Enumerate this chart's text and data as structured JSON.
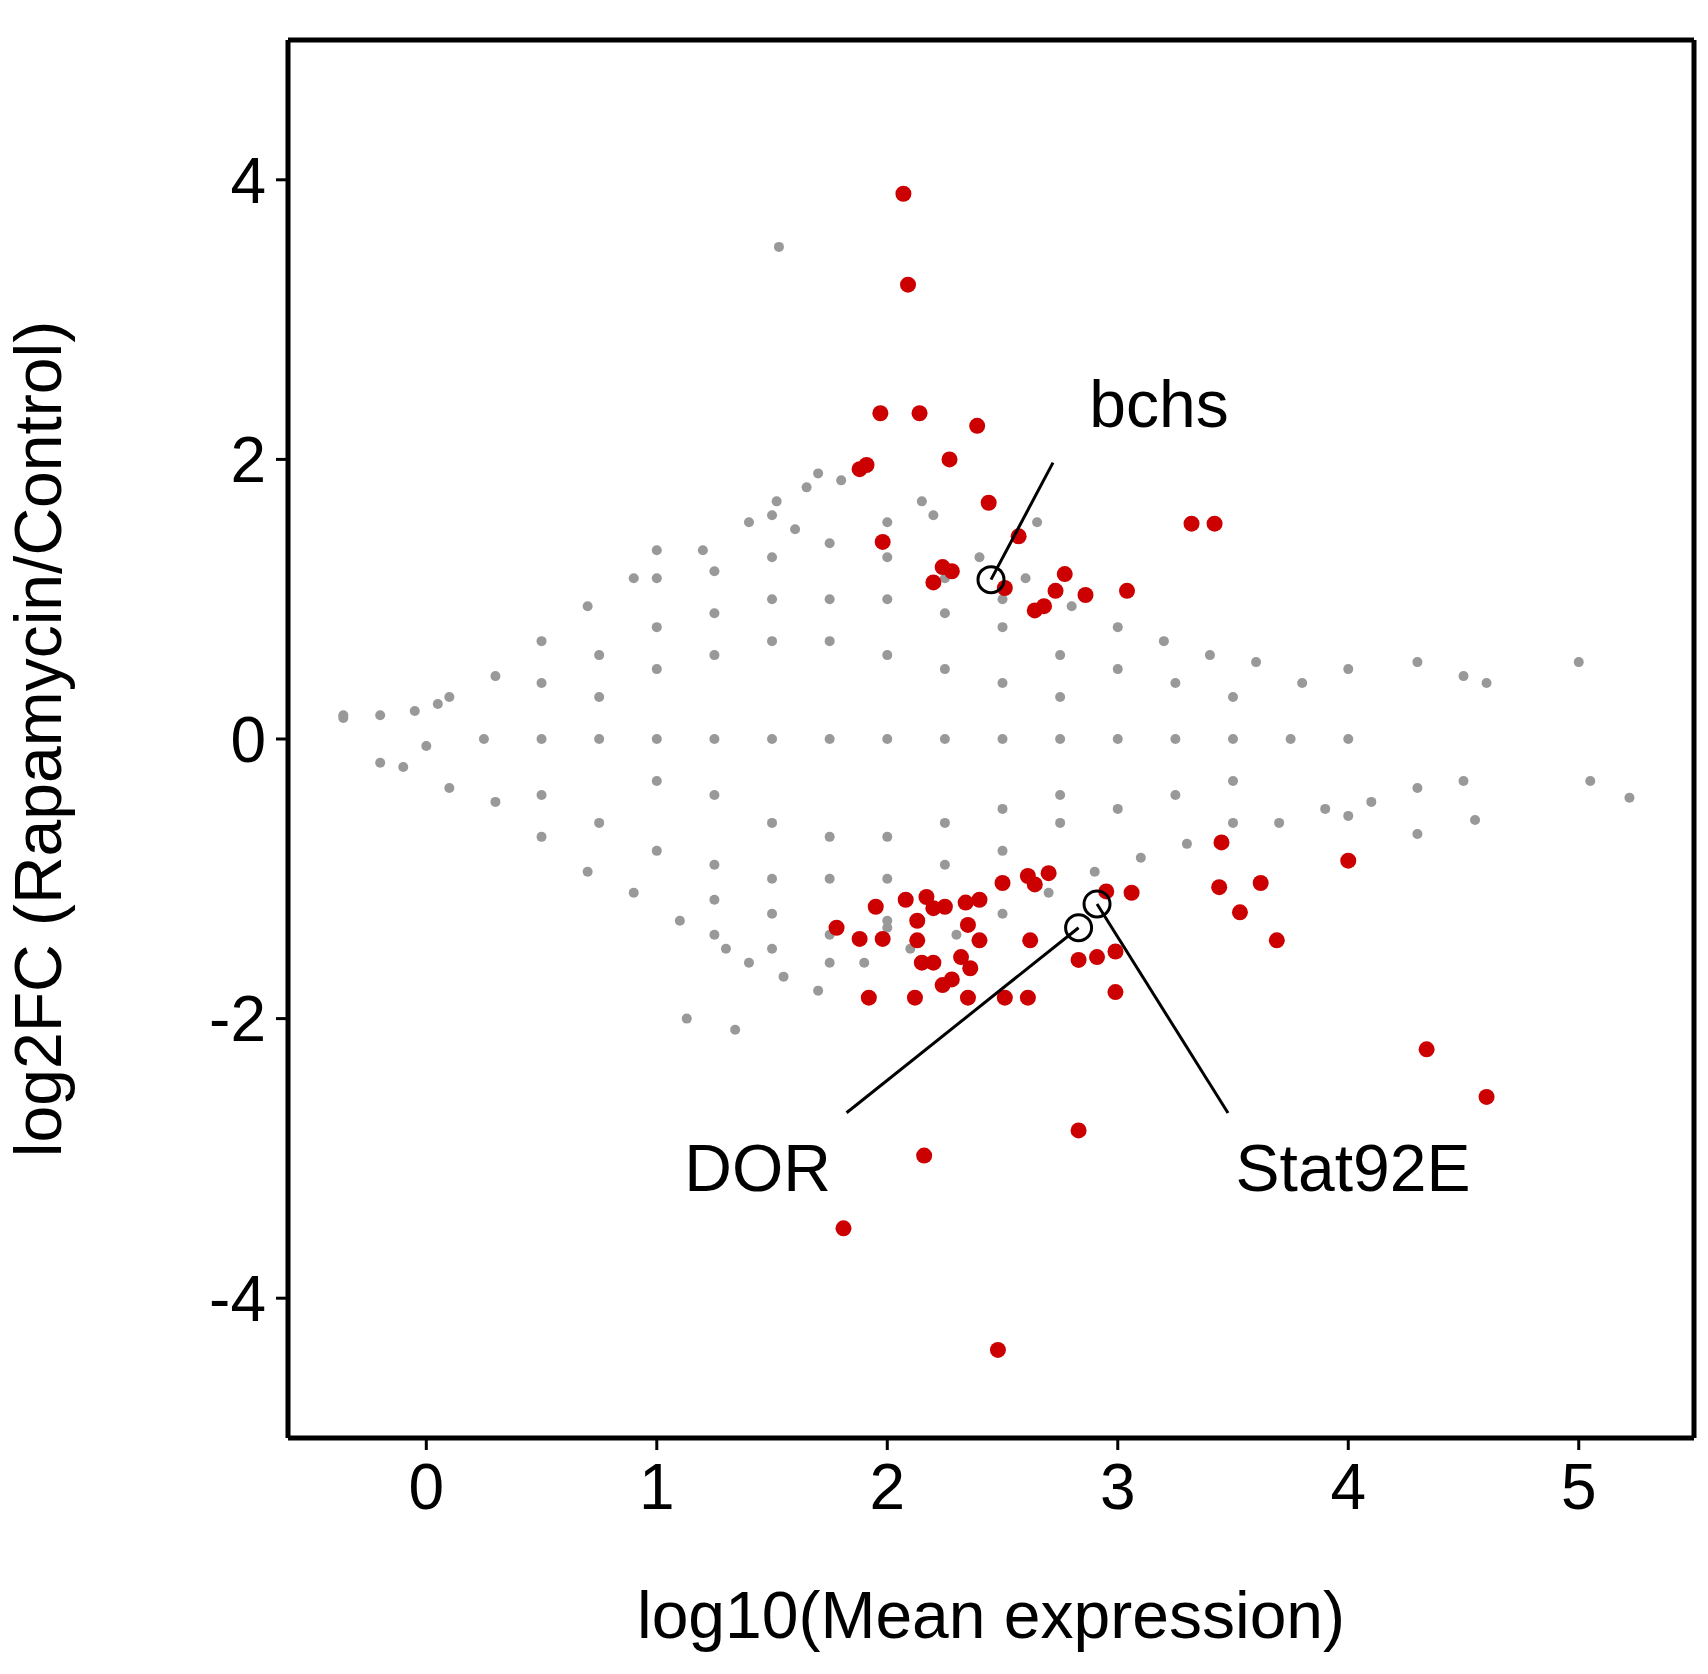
{
  "chart_data": {
    "type": "scatter",
    "xlabel": "log10(Mean expression)",
    "ylabel": "log2FC (Rapamycin/Control)",
    "xlim": [
      -0.6,
      5.5
    ],
    "ylim": [
      -5,
      5
    ],
    "xticks": [
      0,
      1,
      2,
      3,
      4,
      5
    ],
    "yticks": [
      -4,
      -2,
      0,
      2,
      4
    ],
    "marker": "circle",
    "series": [
      {
        "color": "#999999",
        "x": [
          -0.36,
          -0.2,
          -0.2,
          -0.36,
          -0.1,
          -0.05,
          0.05,
          0.0,
          0.1,
          0.1,
          0.3,
          0.5,
          0.7,
          0.9,
          1.0,
          1.2,
          1.4,
          1.5,
          1.65,
          1.8,
          2.0,
          2.2,
          2.4,
          2.6,
          2.8,
          3.0,
          3.2,
          3.4,
          3.6,
          3.8,
          4.0,
          4.3,
          4.5,
          4.6,
          1.53,
          5.0,
          5.05,
          5.22,
          4.55,
          4.3,
          4.0,
          1.13,
          1.34,
          1.52,
          1.7,
          1.6,
          2.65,
          2.15,
          0.3,
          0.5,
          0.7,
          0.9,
          1.1,
          1.3,
          1.4,
          1.55,
          1.7,
          1.9,
          2.1,
          2.3,
          2.5,
          2.7,
          2.9,
          3.1,
          3.3,
          3.5,
          3.7,
          3.9,
          4.1,
          4.3,
          4.5,
          0.25,
          0.5,
          0.75,
          1.0,
          1.25,
          1.5,
          1.75,
          2.0,
          2.25,
          2.5,
          2.75,
          3.0,
          3.25,
          3.5,
          3.75,
          4.0,
          0.5,
          0.75,
          1.0,
          1.25,
          1.5,
          1.75,
          2.0,
          2.25,
          2.5,
          2.75,
          3.0,
          3.25,
          3.5,
          0.5,
          0.75,
          1.0,
          1.25,
          1.5,
          1.75,
          2.0,
          2.25,
          2.5,
          2.75,
          3.0,
          3.25,
          3.5,
          0.75,
          1.0,
          1.25,
          1.5,
          1.75,
          2.0,
          2.25,
          2.5,
          2.75,
          1.0,
          1.25,
          1.5,
          1.75,
          2.0,
          2.25,
          2.5,
          2.75,
          1.0,
          1.25,
          1.5,
          1.75,
          2.0,
          2.25,
          2.5,
          1.25,
          1.5,
          1.75,
          2.0,
          1.25,
          1.5,
          1.75,
          2.0
        ],
        "values": [
          0.17,
          0.17,
          -0.17,
          0.15,
          -0.2,
          0.2,
          0.25,
          -0.05,
          0.3,
          -0.35,
          0.45,
          0.7,
          0.95,
          1.15,
          1.35,
          1.35,
          1.55,
          1.6,
          1.8,
          1.85,
          1.55,
          1.6,
          1.3,
          1.15,
          0.95,
          0.8,
          0.7,
          0.6,
          0.55,
          0.4,
          0.5,
          0.55,
          0.45,
          0.4,
          3.52,
          0.55,
          -0.3,
          -0.42,
          -0.58,
          -0.68,
          -0.55,
          -2.0,
          -2.08,
          1.7,
          1.9,
          1.5,
          1.55,
          1.7,
          -0.45,
          -0.7,
          -0.95,
          -1.1,
          -1.3,
          -1.5,
          -1.6,
          -1.7,
          -1.8,
          -1.6,
          -1.5,
          -1.4,
          -1.25,
          -1.1,
          -0.95,
          -0.85,
          -0.75,
          -0.6,
          -0.6,
          -0.5,
          -0.45,
          -0.35,
          -0.3,
          0,
          0,
          0,
          0,
          0,
          0,
          0,
          0,
          0,
          0,
          0,
          0,
          0,
          0,
          0,
          0,
          0.4,
          0.6,
          0.8,
          0.9,
          1.0,
          1.0,
          1.0,
          0.9,
          0.8,
          0.6,
          0.5,
          0.4,
          0.3,
          -0.4,
          -0.6,
          -0.8,
          -0.9,
          -1.0,
          -1.0,
          -1.0,
          -0.9,
          -0.8,
          -0.6,
          -0.5,
          -0.4,
          -0.3,
          0.3,
          0.5,
          0.6,
          0.7,
          0.7,
          0.6,
          0.5,
          0.4,
          0.3,
          -0.3,
          -0.4,
          -0.6,
          -0.7,
          -0.7,
          -0.6,
          -0.5,
          -0.4,
          1.15,
          1.2,
          1.3,
          1.4,
          1.3,
          1.15,
          1.0,
          -1.15,
          -1.25,
          -1.4,
          -1.3,
          -1.4,
          -1.5,
          -1.6,
          -1.35
        ]
      },
      {
        "color": "#cc0000",
        "x": [
          2.07,
          2.09,
          1.97,
          2.14,
          2.39,
          1.91,
          1.88,
          2.27,
          2.44,
          1.98,
          2.57,
          3.32,
          3.42,
          2.24,
          2.28,
          2.2,
          2.77,
          2.51,
          2.73,
          2.86,
          3.04,
          2.64,
          2.68,
          3.45,
          4.0,
          3.44,
          3.62,
          3.53,
          3.69,
          2.61,
          2.64,
          2.5,
          2.7,
          2.95,
          3.06,
          1.95,
          2.08,
          2.17,
          2.25,
          2.34,
          2.4,
          2.2,
          2.13,
          2.35,
          2.4,
          1.78,
          1.88,
          1.98,
          2.13,
          2.15,
          2.2,
          2.32,
          2.36,
          2.28,
          2.62,
          2.83,
          2.91,
          2.99,
          2.99,
          2.24,
          1.92,
          2.12,
          2.35,
          2.51,
          2.61,
          4.34,
          4.6,
          2.83,
          2.16,
          1.81,
          2.48
        ],
        "values": [
          3.9,
          3.25,
          2.33,
          2.33,
          2.24,
          1.96,
          1.93,
          2.0,
          1.69,
          1.41,
          1.45,
          1.54,
          1.54,
          1.23,
          1.2,
          1.12,
          1.18,
          1.08,
          1.06,
          1.03,
          1.06,
          0.92,
          0.95,
          -0.74,
          -0.87,
          -1.06,
          -1.03,
          -1.24,
          -1.44,
          -0.98,
          -1.04,
          -1.03,
          -0.96,
          -1.09,
          -1.1,
          -1.2,
          -1.15,
          -1.13,
          -1.2,
          -1.17,
          -1.15,
          -1.21,
          -1.3,
          -1.33,
          -1.44,
          -1.35,
          -1.43,
          -1.43,
          -1.44,
          -1.6,
          -1.6,
          -1.56,
          -1.64,
          -1.72,
          -1.44,
          -1.58,
          -1.56,
          -1.52,
          -1.81,
          -1.76,
          -1.85,
          -1.85,
          -1.85,
          -1.85,
          -1.85,
          -2.22,
          -2.56,
          -2.8,
          -2.98,
          -3.5,
          -4.37
        ]
      }
    ],
    "annotations": [
      {
        "text": "bchs",
        "x": 2.45,
        "y": 1.14
      },
      {
        "text": "DOR",
        "x": 2.83,
        "y": -1.35
      },
      {
        "text": "Stat92E",
        "x": 2.91,
        "y": -1.18
      }
    ]
  }
}
